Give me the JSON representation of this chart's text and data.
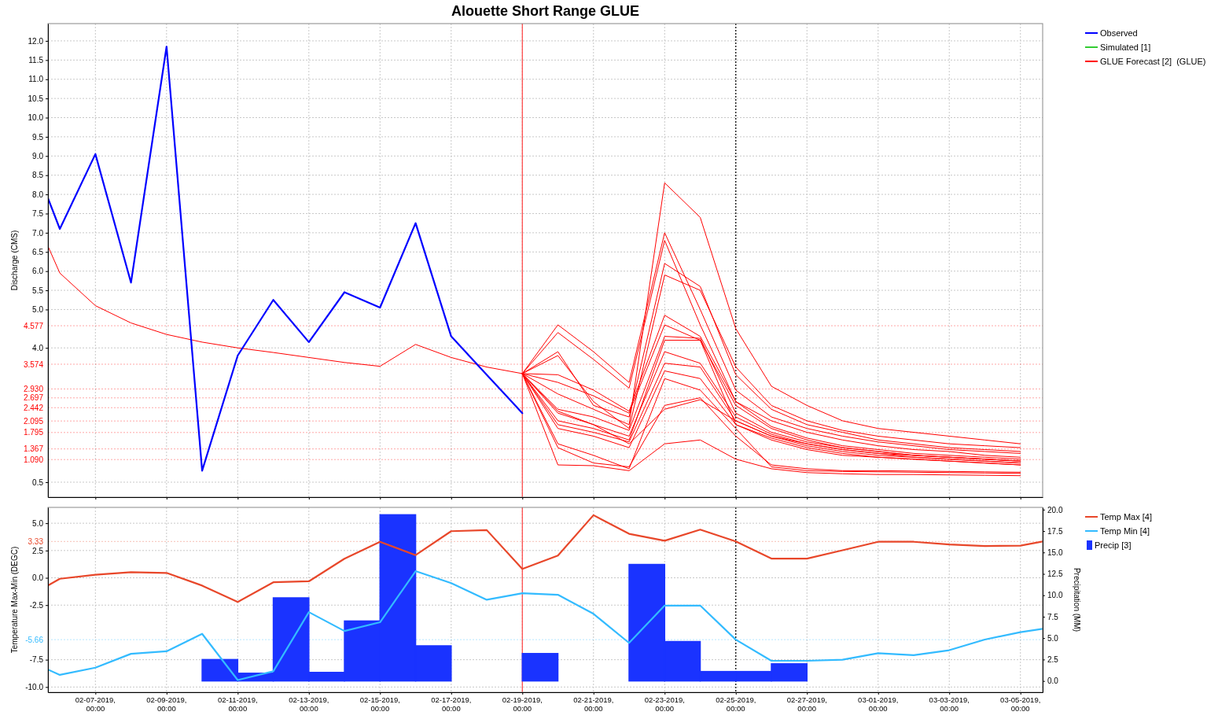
{
  "chart_data": [
    {
      "type": "line",
      "title": "Alouette Short Range GLUE",
      "ylabel": "Discharge (CMS)",
      "xlim": [
        "2019-02-05T16:00",
        "2019-03-05T15:00"
      ],
      "ylim": [
        0.11,
        12.45
      ],
      "xticks": [
        {
          "value": "2019-02-07",
          "label": null
        },
        {
          "value": "2019-02-09",
          "label": null
        },
        {
          "value": "2019-02-11",
          "label": null
        },
        {
          "value": "2019-02-13",
          "label": null
        },
        {
          "value": "2019-02-15",
          "label": null
        },
        {
          "value": "2019-02-17",
          "label": null
        },
        {
          "value": "2019-02-19",
          "label": null
        },
        {
          "value": "2019-02-21",
          "label": null
        },
        {
          "value": "2019-02-23",
          "label": null
        },
        {
          "value": "2019-02-25",
          "label": null
        },
        {
          "value": "2019-02-27",
          "label": null
        },
        {
          "value": "2019-03-01",
          "label": null
        },
        {
          "value": "2019-03-03",
          "label": null
        },
        {
          "value": "2019-03-05",
          "label": null
        }
      ],
      "yticks": [
        0.5,
        {
          "value": 4,
          "label": "4.0"
        },
        {
          "value": 5,
          "label": "5.0"
        },
        5.5,
        {
          "value": 6,
          "label": "6.0"
        },
        6.5,
        {
          "value": 7,
          "label": "7.0"
        },
        7.5,
        {
          "value": 8,
          "label": "8.0"
        },
        8.5,
        {
          "value": 9,
          "label": "9.0"
        },
        9.5,
        {
          "value": 10,
          "label": "10.0"
        },
        10.5,
        {
          "value": 11,
          "label": "11.0"
        },
        11.5,
        {
          "value": 12,
          "label": "12.0"
        }
      ],
      "tick_labels": "y",
      "grid": true,
      "legend": "top right",
      "ref_lines": [
        {
          "axis": "y",
          "value": 4.577,
          "label": "4.577",
          "color": "#ff0000",
          "line_style": "dotted"
        },
        {
          "axis": "y",
          "value": 3.574,
          "label": "3.574",
          "color": "#ff0000",
          "line_style": "dotted"
        },
        {
          "axis": "y",
          "value": 2.93,
          "label": "2.930",
          "color": "#ff0000",
          "line_style": "dotted"
        },
        {
          "axis": "y",
          "value": 2.697,
          "label": "2.697",
          "color": "#ff0000",
          "line_style": "dotted"
        },
        {
          "axis": "y",
          "value": 2.442,
          "label": "2.442",
          "color": "#ff0000",
          "line_style": "dotted"
        },
        {
          "axis": "y",
          "value": 2.095,
          "label": "2.095",
          "color": "#ff0000",
          "line_style": "dotted"
        },
        {
          "axis": "y",
          "value": 1.795,
          "label": "1.795",
          "color": "#ff0000",
          "line_style": "dotted"
        },
        {
          "axis": "y",
          "value": 1.367,
          "label": "1.367",
          "color": "#ff0000",
          "line_style": "dotted"
        },
        {
          "axis": "y",
          "value": 1.09,
          "label": "1.090",
          "color": "#ff0000",
          "line_style": "dotted"
        },
        {
          "axis": "x",
          "value": "2019-02-19",
          "color": "#ff4040",
          "line_style": "solid"
        },
        {
          "axis": "x",
          "value": "2019-02-25",
          "color": "#000000",
          "line_style": "dotted"
        }
      ],
      "x": [
        "2019-02-19",
        "2019-02-20",
        "2019-02-21",
        "2019-02-22",
        "2019-02-23",
        "2019-02-24",
        "2019-02-25",
        "2019-02-26",
        "2019-02-27",
        "2019-02-28",
        "2019-03-01",
        "2019-03-02",
        "2019-03-03",
        "2019-03-04",
        "2019-03-05"
      ],
      "series": [
        {
          "name": "Observed",
          "color": "#0000ff",
          "x": [
            "2019-02-05T16:00",
            "2019-02-06",
            "2019-02-07",
            "2019-02-08",
            "2019-02-09",
            "2019-02-10",
            "2019-02-11",
            "2019-02-12",
            "2019-02-13",
            "2019-02-14",
            "2019-02-15",
            "2019-02-16",
            "2019-02-17",
            "2019-02-18",
            "2019-02-19"
          ],
          "values": [
            7.9,
            7.1,
            9.05,
            5.7,
            11.85,
            0.8,
            3.8,
            5.25,
            4.15,
            5.45,
            5.05,
            7.25,
            4.3,
            3.3,
            2.3
          ]
        },
        {
          "name": "Simulated [1]",
          "color": "#33cc33",
          "values": [
            null,
            null,
            null,
            null,
            null,
            null,
            null,
            null,
            null,
            null,
            null,
            null,
            null,
            null,
            null
          ]
        },
        {
          "name": "GLUE Forecast [2]  (GLUE)",
          "color": "#ff0000",
          "x": [
            "2019-02-05T16:00",
            "2019-02-06",
            "2019-02-07",
            "2019-02-08",
            "2019-02-09",
            "2019-02-10",
            "2019-02-11",
            "2019-02-12",
            "2019-02-13",
            "2019-02-14",
            "2019-02-15",
            "2019-02-16",
            "2019-02-17",
            "2019-02-18",
            "2019-02-19",
            "2019-02-20",
            "2019-02-21",
            "2019-02-22",
            "2019-02-23",
            "2019-02-24",
            "2019-02-25",
            "2019-02-26",
            "2019-02-27",
            "2019-02-28",
            "2019-03-01",
            "2019-03-02",
            "2019-03-03",
            "2019-03-04",
            "2019-03-05"
          ],
          "values": [
            6.65,
            5.95,
            5.1,
            4.65,
            4.35,
            4.15,
            4.0,
            3.88,
            3.75,
            3.62,
            3.52,
            4.09,
            3.75,
            3.5,
            3.33,
            2.8,
            2.4,
            2.0,
            8.3,
            7.4,
            4.5,
            3.0,
            2.5,
            2.1,
            1.9,
            1.8,
            1.7,
            1.6,
            1.5
          ]
        },
        {
          "color": "#ff0000",
          "values": [
            3.33,
            4.6,
            3.9,
            3.1,
            7.0,
            5.0,
            2.9,
            2.2,
            1.9,
            1.7,
            1.55,
            1.45,
            1.35,
            1.3,
            1.25
          ]
        },
        {
          "color": "#ff0000",
          "values": [
            3.33,
            4.4,
            3.7,
            2.95,
            6.8,
            4.6,
            2.6,
            2.1,
            1.8,
            1.6,
            1.45,
            1.35,
            1.3,
            1.2,
            1.15
          ]
        },
        {
          "color": "#ff0000",
          "values": [
            3.33,
            3.9,
            2.5,
            2.2,
            6.2,
            5.6,
            3.3,
            2.4,
            2.0,
            1.8,
            1.6,
            1.5,
            1.4,
            1.35,
            1.3
          ]
        },
        {
          "color": "#ff0000",
          "values": [
            3.33,
            3.8,
            2.6,
            1.9,
            5.9,
            5.5,
            3.5,
            2.5,
            2.1,
            1.85,
            1.7,
            1.6,
            1.5,
            1.45,
            1.4
          ]
        },
        {
          "color": "#ff0000",
          "values": [
            3.33,
            3.3,
            2.9,
            2.35,
            4.85,
            4.3,
            2.6,
            1.95,
            1.65,
            1.45,
            1.35,
            1.25,
            1.2,
            1.15,
            1.1
          ]
        },
        {
          "color": "#ff0000",
          "values": [
            3.33,
            3.1,
            2.75,
            2.3,
            4.6,
            4.2,
            2.5,
            1.9,
            1.6,
            1.4,
            1.3,
            1.2,
            1.15,
            1.1,
            1.05
          ]
        },
        {
          "color": "#ff0000",
          "values": [
            3.33,
            2.4,
            2.2,
            1.85,
            4.3,
            4.25,
            2.3,
            1.8,
            1.55,
            1.4,
            1.3,
            1.2,
            1.15,
            1.1,
            1.05
          ]
        },
        {
          "color": "#ff0000",
          "values": [
            3.33,
            2.35,
            2.0,
            1.7,
            3.9,
            3.6,
            2.2,
            1.75,
            1.5,
            1.35,
            1.25,
            1.15,
            1.1,
            1.05,
            1.0
          ]
        },
        {
          "color": "#ff0000",
          "values": [
            3.33,
            2.0,
            1.8,
            1.55,
            3.6,
            3.5,
            2.1,
            1.7,
            1.45,
            1.3,
            1.2,
            1.15,
            1.1,
            1.05,
            1.0
          ]
        },
        {
          "color": "#ff0000",
          "values": [
            3.33,
            1.9,
            1.7,
            1.4,
            3.4,
            3.2,
            2.0,
            1.6,
            1.35,
            1.2,
            1.15,
            1.1,
            1.05,
            1.0,
            0.95
          ]
        },
        {
          "color": "#ff0000",
          "values": [
            3.33,
            1.5,
            1.2,
            0.85,
            3.2,
            2.9,
            1.9,
            0.9,
            0.8,
            0.78,
            0.77,
            0.76,
            0.75,
            0.74,
            0.73
          ]
        },
        {
          "color": "#ff0000",
          "values": [
            3.33,
            0.95,
            0.93,
            0.8,
            1.5,
            1.6,
            1.1,
            0.85,
            0.75,
            0.72,
            0.7,
            0.7,
            0.69,
            0.68,
            0.67
          ]
        },
        {
          "color": "#ff0000",
          "values": [
            3.33,
            1.4,
            1.0,
            0.9,
            2.5,
            2.7,
            1.7,
            0.95,
            0.85,
            0.8,
            0.8,
            0.79,
            0.78,
            0.77,
            0.76
          ]
        },
        {
          "color": "#ff0000",
          "values": [
            3.33,
            2.1,
            1.9,
            1.6,
            4.2,
            4.2,
            2.0,
            1.65,
            1.4,
            1.25,
            1.15,
            1.1,
            1.05,
            1.0,
            0.95
          ]
        },
        {
          "color": "#ff0000",
          "values": [
            3.33,
            2.3,
            2.0,
            1.5,
            2.4,
            2.65,
            2.1,
            1.7,
            1.5,
            1.35,
            1.25,
            1.2,
            1.15,
            1.1,
            1.05
          ]
        }
      ]
    },
    {
      "type": "line",
      "ylabel": "Temperature Max-Min (DEGC)",
      "y2label": "Precipitation (MM)",
      "xlim": [
        "2019-02-05T16:00",
        "2019-03-05T15:00"
      ],
      "ylim": [
        -10.48,
        6.45
      ],
      "y2lim": [
        -1.32,
        20.26
      ],
      "xticks": [
        {
          "value": "2019-02-07",
          "label": "02-07-2019,\n00:00"
        },
        {
          "value": "2019-02-09",
          "label": "02-09-2019,\n00:00"
        },
        {
          "value": "2019-02-11",
          "label": "02-11-2019,\n00:00"
        },
        {
          "value": "2019-02-13",
          "label": "02-13-2019,\n00:00"
        },
        {
          "value": "2019-02-15",
          "label": "02-15-2019,\n00:00"
        },
        {
          "value": "2019-02-17",
          "label": "02-17-2019,\n00:00"
        },
        {
          "value": "2019-02-19",
          "label": "02-19-2019,\n00:00"
        },
        {
          "value": "2019-02-21",
          "label": "02-21-2019,\n00:00"
        },
        {
          "value": "2019-02-23",
          "label": "02-23-2019,\n00:00"
        },
        {
          "value": "2019-02-25",
          "label": "02-25-2019,\n00:00"
        },
        {
          "value": "2019-02-27",
          "label": "02-27-2019,\n00:00"
        },
        {
          "value": "2019-03-01",
          "label": "03-01-2019,\n00:00"
        },
        {
          "value": "2019-03-03",
          "label": "03-03-2019,\n00:00"
        },
        {
          "value": "2019-03-05",
          "label": "03-05-2019,\n00:00"
        }
      ],
      "yticks": [
        {
          "value": -10,
          "label": "-10.0"
        },
        -7.5,
        -2.5,
        {
          "value": 0,
          "label": "0.0"
        },
        2.5,
        {
          "value": 5,
          "label": "5.0"
        }
      ],
      "y2ticks": [
        {
          "value": 0,
          "label": "0.0"
        },
        2.5,
        {
          "value": 5,
          "label": "5.0"
        },
        7.5,
        {
          "value": 10,
          "label": "10.0"
        },
        12.5,
        {
          "value": 15,
          "label": "15.0"
        },
        17.5,
        {
          "value": 20,
          "label": "20.0"
        }
      ],
      "grid": true,
      "legend": "top right",
      "ref_lines": [
        {
          "axis": "y",
          "value": 3.33,
          "label": "3.33",
          "color": "#e8472a",
          "line_style": "dotted"
        },
        {
          "axis": "y",
          "value": -5.66,
          "label": "-5.66",
          "color": "#33bbff",
          "line_style": "dotted"
        },
        {
          "axis": "x",
          "value": "2019-02-19",
          "color": "#ff4040",
          "line_style": "solid"
        },
        {
          "axis": "x",
          "value": "2019-02-25",
          "color": "#000000",
          "line_style": "dotted"
        }
      ],
      "x": [
        "2019-02-05T16:00",
        "2019-02-06",
        "2019-02-07",
        "2019-02-08",
        "2019-02-09",
        "2019-02-10",
        "2019-02-11",
        "2019-02-12",
        "2019-02-13",
        "2019-02-14",
        "2019-02-15",
        "2019-02-16",
        "2019-02-17",
        "2019-02-18",
        "2019-02-19",
        "2019-02-20",
        "2019-02-21",
        "2019-02-22",
        "2019-02-23",
        "2019-02-24",
        "2019-02-25",
        "2019-02-26",
        "2019-02-27",
        "2019-02-28",
        "2019-03-01",
        "2019-03-02",
        "2019-03-03",
        "2019-03-04",
        "2019-03-05",
        "2019-03-05T15:00"
      ],
      "series": [
        {
          "name": "Temp Max [4]",
          "color": "#e8472a",
          "values": [
            -0.71,
            -0.09,
            0.28,
            0.52,
            0.45,
            -0.71,
            -2.21,
            -0.41,
            -0.32,
            1.75,
            3.3,
            2.08,
            4.27,
            4.37,
            0.81,
            2.04,
            5.74,
            4.03,
            3.4,
            4.41,
            3.33,
            1.76,
            1.76,
            2.52,
            3.3,
            3.3,
            3.05,
            2.91,
            2.95,
            3.33
          ]
        },
        {
          "name": "Temp Min [4]",
          "color": "#33bbff",
          "values": [
            -8.4,
            -8.89,
            -8.23,
            -6.96,
            -6.73,
            -5.13,
            -9.36,
            -8.56,
            -3.14,
            -4.87,
            -4.07,
            0.61,
            -0.48,
            -2.01,
            -1.41,
            -1.55,
            -3.3,
            -5.96,
            -2.54,
            -2.54,
            -5.66,
            -7.6,
            -7.6,
            -7.5,
            -6.9,
            -7.08,
            -6.63,
            -5.65,
            -4.98,
            -4.67
          ]
        },
        {
          "name": "Precip [3]",
          "type": "bar",
          "axis": "y2",
          "color": "#1a33ff",
          "x": [
            "2019-02-10T12:00",
            "2019-02-11T12:00",
            "2019-02-12T12:00",
            "2019-02-13T12:00",
            "2019-02-14T12:00",
            "2019-02-15T12:00",
            "2019-02-16T12:00",
            "2019-02-17T12:00",
            "2019-02-18T12:00",
            "2019-02-19T12:00",
            "2019-02-20T12:00",
            "2019-02-21T12:00",
            "2019-02-22T12:00",
            "2019-02-23T12:00",
            "2019-02-24T12:00",
            "2019-02-25T12:00",
            "2019-02-26T12:00",
            "2019-02-27T12:00",
            "2019-02-28T12:00",
            "2019-03-01T12:00",
            "2019-03-02T12:00",
            "2019-03-03T12:00",
            "2019-03-04T12:00",
            "2019-03-05T12:00"
          ],
          "values": [
            2.5,
            0.9,
            9.7,
            1.0,
            7.0,
            19.4,
            4.1,
            0,
            0,
            3.2,
            0,
            0,
            13.6,
            4.6,
            1.1,
            1.1,
            2.0,
            0,
            0,
            0,
            0,
            0,
            0,
            0
          ]
        }
      ]
    }
  ]
}
